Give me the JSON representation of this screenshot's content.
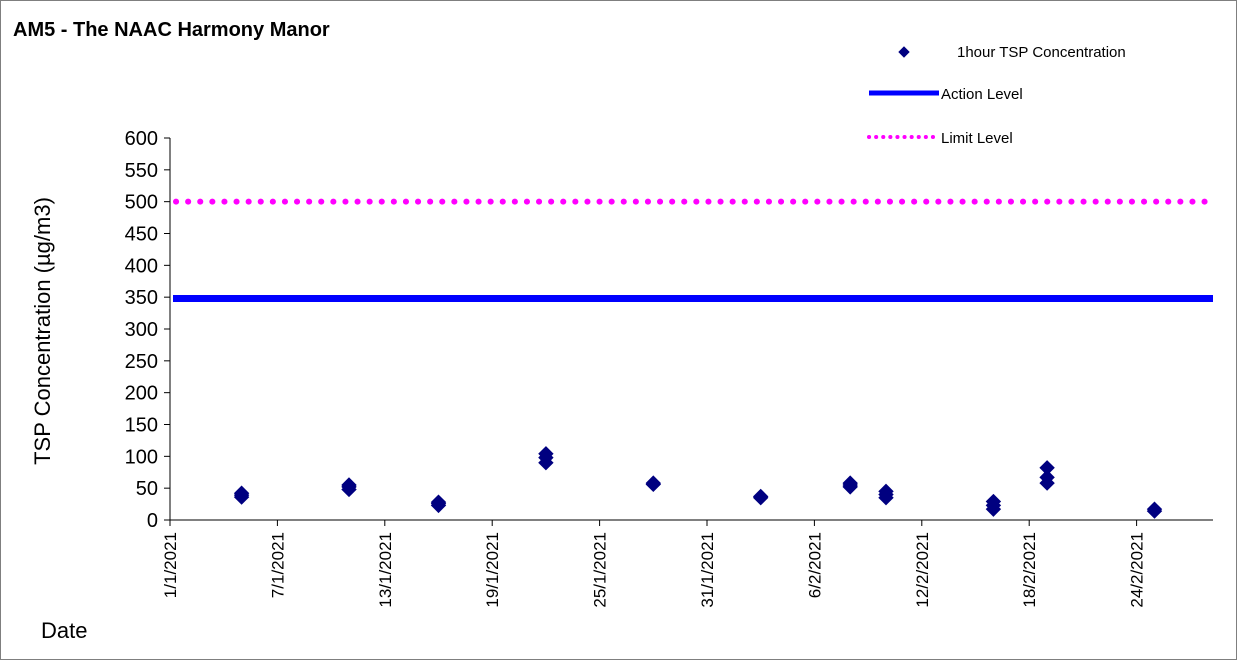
{
  "chart_data": {
    "type": "scatter",
    "title": "AM5 - The NAAC Harmony Manor",
    "xlabel": "Date",
    "ylabel": "TSP Concentration (µg/m3)",
    "ylim": [
      0,
      600
    ],
    "yticks": [
      0,
      50,
      100,
      150,
      200,
      250,
      300,
      350,
      400,
      450,
      500,
      550,
      600
    ],
    "xlim": [
      "2021-01-01",
      "2021-02-28"
    ],
    "xticks": [
      {
        "date": "2021-01-01",
        "label": "1/1/2021"
      },
      {
        "date": "2021-01-07",
        "label": "7/1/2021"
      },
      {
        "date": "2021-01-13",
        "label": "13/1/2021"
      },
      {
        "date": "2021-01-19",
        "label": "19/1/2021"
      },
      {
        "date": "2021-01-25",
        "label": "25/1/2021"
      },
      {
        "date": "2021-01-31",
        "label": "31/1/2021"
      },
      {
        "date": "2021-02-06",
        "label": "6/2/2021"
      },
      {
        "date": "2021-02-12",
        "label": "12/2/2021"
      },
      {
        "date": "2021-02-18",
        "label": "18/2/2021"
      },
      {
        "date": "2021-02-24",
        "label": "24/2/2021"
      }
    ],
    "grid": false,
    "legend_position": "top-right",
    "series": [
      {
        "name": "1hour TSP Concentration",
        "kind": "scatter",
        "marker": "diamond",
        "color": "#000080",
        "points": [
          {
            "x": "2021-01-05",
            "y": 36
          },
          {
            "x": "2021-01-05",
            "y": 39
          },
          {
            "x": "2021-01-05",
            "y": 42
          },
          {
            "x": "2021-01-11",
            "y": 48
          },
          {
            "x": "2021-01-11",
            "y": 52
          },
          {
            "x": "2021-01-11",
            "y": 55
          },
          {
            "x": "2021-01-16",
            "y": 23
          },
          {
            "x": "2021-01-16",
            "y": 26
          },
          {
            "x": "2021-01-16",
            "y": 28
          },
          {
            "x": "2021-01-22",
            "y": 90
          },
          {
            "x": "2021-01-22",
            "y": 98
          },
          {
            "x": "2021-01-22",
            "y": 104
          },
          {
            "x": "2021-01-28",
            "y": 56
          },
          {
            "x": "2021-01-28",
            "y": 58
          },
          {
            "x": "2021-02-03",
            "y": 35
          },
          {
            "x": "2021-02-03",
            "y": 37
          },
          {
            "x": "2021-02-08",
            "y": 52
          },
          {
            "x": "2021-02-08",
            "y": 55
          },
          {
            "x": "2021-02-08",
            "y": 58
          },
          {
            "x": "2021-02-10",
            "y": 35
          },
          {
            "x": "2021-02-10",
            "y": 40
          },
          {
            "x": "2021-02-10",
            "y": 45
          },
          {
            "x": "2021-02-16",
            "y": 17
          },
          {
            "x": "2021-02-16",
            "y": 23
          },
          {
            "x": "2021-02-16",
            "y": 29
          },
          {
            "x": "2021-02-19",
            "y": 58
          },
          {
            "x": "2021-02-19",
            "y": 67
          },
          {
            "x": "2021-02-19",
            "y": 82
          },
          {
            "x": "2021-02-25",
            "y": 14
          },
          {
            "x": "2021-02-25",
            "y": 17
          }
        ]
      },
      {
        "name": "Action Level",
        "kind": "line",
        "style": "solid",
        "color": "#0000ff",
        "value": 348
      },
      {
        "name": "Limit Level",
        "kind": "line",
        "style": "dotted",
        "color": "#ff00ff",
        "value": 500
      }
    ]
  }
}
